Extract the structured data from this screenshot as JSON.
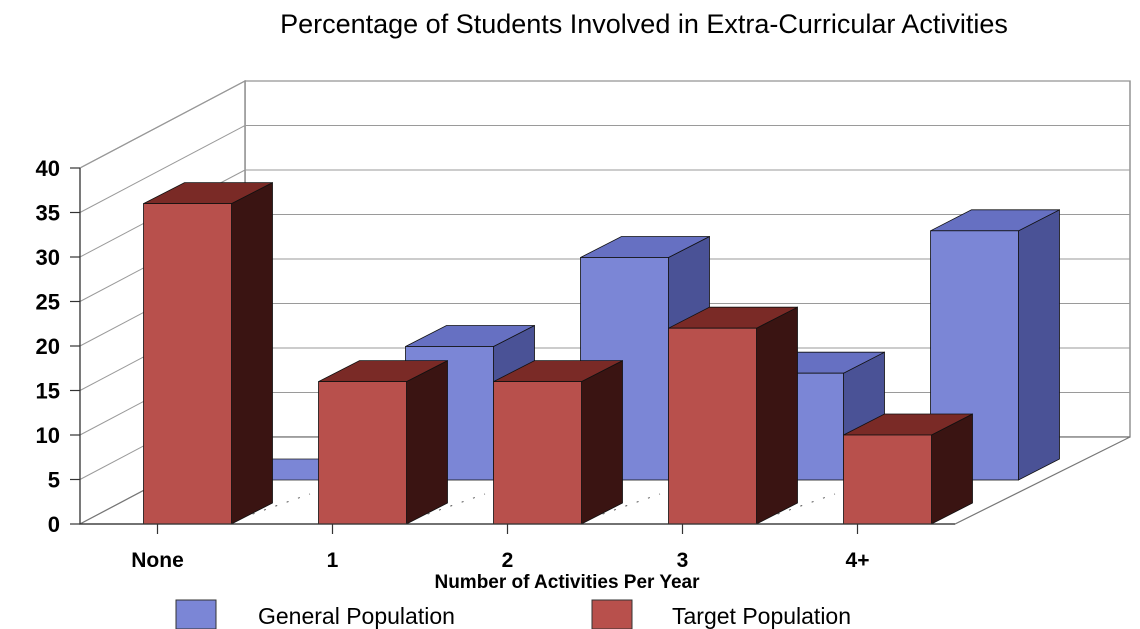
{
  "chart_data": {
    "type": "bar",
    "title": "Percentage of Students Involved in Extra-Curricular Activities",
    "xlabel": "Number of Activities Per Year",
    "ylabel": "",
    "categories": [
      "None",
      "1",
      "2",
      "3",
      "4+"
    ],
    "yticks": [
      "0",
      "5",
      "10",
      "15",
      "20",
      "25",
      "30",
      "35",
      "40"
    ],
    "ylim": [
      0,
      40
    ],
    "three_d": true,
    "grid": true,
    "legend_position": "bottom",
    "series": [
      {
        "name": "General Population",
        "values": [
          0,
          15,
          25,
          12,
          28
        ],
        "color": "#7b86d6",
        "side_color": "#4a5296",
        "top_color": "#6670c2"
      },
      {
        "name": "Target Population",
        "values": [
          36,
          16,
          16,
          22,
          10
        ],
        "color": "#b8504c",
        "side_color": "#3a1412",
        "top_color": "#7a2a26"
      }
    ]
  }
}
